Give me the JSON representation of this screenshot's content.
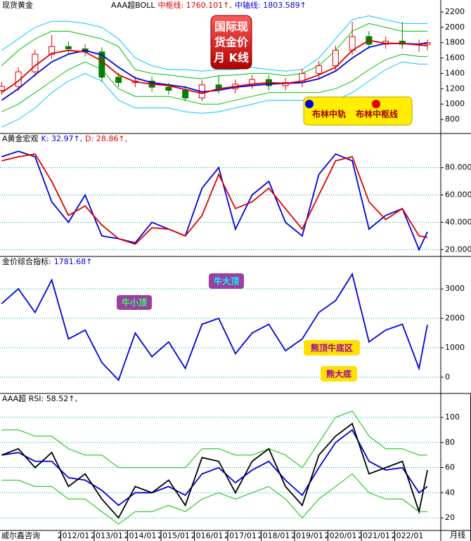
{
  "chart_data": [
    {
      "type": "candlestick",
      "name": "现货黄金",
      "header": [
        {
          "text": "AAA超BOLL",
          "color": "#000000"
        },
        {
          "text": "中枢线: 1760.101↑,",
          "color": "#e00000"
        },
        {
          "text": "中轴线: 1803.589↑",
          "color": "#0000dd"
        }
      ],
      "badge_lines": [
        "国际现",
        "货金价",
        "月  K线"
      ],
      "legend": "bottom-right",
      "xlim": [
        2009.8,
        2023
      ],
      "ylim": [
        617,
        2356
      ],
      "yticks": [
        800,
        1000,
        1200,
        1400,
        1600,
        1800,
        2000,
        2200
      ],
      "grid": false,
      "up_color": "#e00000",
      "down_color": "#008000",
      "x": [
        2009.85,
        2010.35,
        2010.85,
        2011.35,
        2011.85,
        2012.35,
        2012.85,
        2013.35,
        2013.85,
        2014.35,
        2014.85,
        2015.35,
        2015.85,
        2016.35,
        2016.85,
        2017.35,
        2017.85,
        2018.35,
        2018.85,
        2019.35,
        2019.85,
        2020.35,
        2020.85,
        2021.35,
        2021.85,
        2022.35,
        2022.6
      ],
      "open": [
        1180,
        1230,
        1420,
        1650,
        1750,
        1720,
        1680,
        1350,
        1280,
        1300,
        1220,
        1180,
        1080,
        1250,
        1200,
        1260,
        1320,
        1240,
        1280,
        1400,
        1500,
        1700,
        1880,
        1780,
        1820,
        1780,
        1780
      ],
      "close": [
        1230,
        1420,
        1650,
        1750,
        1720,
        1680,
        1350,
        1280,
        1300,
        1220,
        1180,
        1080,
        1250,
        1200,
        1260,
        1320,
        1240,
        1280,
        1400,
        1500,
        1700,
        1880,
        1780,
        1820,
        1780,
        1780,
        1800
      ],
      "high": [
        1290,
        1480,
        1710,
        1900,
        1820,
        1780,
        1740,
        1410,
        1360,
        1360,
        1280,
        1240,
        1310,
        1370,
        1320,
        1380,
        1380,
        1340,
        1460,
        1560,
        1760,
        2070,
        1950,
        1880,
        2070,
        1840,
        1840
      ],
      "low": [
        1120,
        1170,
        1360,
        1590,
        1660,
        1620,
        1290,
        1220,
        1220,
        1160,
        1120,
        1040,
        1040,
        1140,
        1140,
        1200,
        1180,
        1180,
        1220,
        1340,
        1440,
        1640,
        1720,
        1720,
        1720,
        1680,
        1700
      ],
      "series": [
        {
          "color": "#00c8ff",
          "values": [
            1700,
            1850,
            2000,
            2080,
            2080,
            2050,
            2000,
            1850,
            1600,
            1500,
            1450,
            1450,
            1430,
            1450,
            1450,
            1480,
            1450,
            1430,
            1450,
            1600,
            1850,
            2100,
            2150,
            2100,
            2050,
            2050,
            2050
          ]
        },
        {
          "color": "#00c8ff",
          "values": [
            700,
            800,
            950,
            1150,
            1300,
            1400,
            1300,
            1050,
            950,
            950,
            950,
            900,
            880,
            900,
            950,
            1000,
            1050,
            1050,
            1050,
            1000,
            1050,
            1150,
            1300,
            1450,
            1550,
            1520,
            1520
          ]
        },
        {
          "color": "#00c000",
          "values": [
            1500,
            1700,
            1850,
            1950,
            1950,
            1900,
            1850,
            1750,
            1450,
            1400,
            1380,
            1350,
            1330,
            1370,
            1380,
            1400,
            1400,
            1370,
            1400,
            1500,
            1700,
            1950,
            2050,
            2000,
            1950,
            1950,
            1950
          ]
        },
        {
          "color": "#00c000",
          "values": [
            900,
            1000,
            1150,
            1300,
            1450,
            1550,
            1450,
            1200,
            1100,
            1100,
            1100,
            1050,
            1000,
            1000,
            1050,
            1100,
            1150,
            1150,
            1150,
            1150,
            1200,
            1300,
            1450,
            1580,
            1650,
            1620,
            1620
          ]
        },
        {
          "name": "布林中轨",
          "color": "#0000dd",
          "values": [
            1050,
            1200,
            1380,
            1550,
            1650,
            1700,
            1640,
            1480,
            1340,
            1280,
            1250,
            1220,
            1160,
            1180,
            1220,
            1240,
            1260,
            1270,
            1280,
            1330,
            1430,
            1600,
            1740,
            1790,
            1790,
            1780,
            1800
          ]
        },
        {
          "name": "布林中枢线",
          "color": "#e00000",
          "values": [
            1150,
            1300,
            1500,
            1660,
            1700,
            1680,
            1560,
            1380,
            1290,
            1260,
            1240,
            1190,
            1140,
            1200,
            1230,
            1260,
            1280,
            1270,
            1300,
            1380,
            1480,
            1700,
            1830,
            1790,
            1790,
            1770,
            1760
          ]
        }
      ]
    },
    {
      "type": "line",
      "header": [
        {
          "text": "A黄金宏观",
          "color": "#000000"
        },
        {
          "text": "K: 32.97↑,",
          "color": "#0000dd"
        },
        {
          "text": "D: 28.86↑,",
          "color": "#e00000"
        }
      ],
      "xlim": [
        2009.8,
        2023
      ],
      "ylim": [
        15,
        105
      ],
      "yticks": [
        {
          "value": 20,
          "label": "20.0000"
        },
        {
          "value": 40,
          "label": "40.0000"
        },
        {
          "value": 60,
          "label": "60.0000"
        },
        {
          "value": 80,
          "label": "80.0000"
        }
      ],
      "grid": true,
      "x": [
        2009.85,
        2010.35,
        2010.85,
        2011.35,
        2011.85,
        2012.35,
        2012.85,
        2013.35,
        2013.85,
        2014.35,
        2014.85,
        2015.35,
        2015.85,
        2016.35,
        2016.85,
        2017.35,
        2017.85,
        2018.35,
        2018.85,
        2019.35,
        2019.85,
        2020.35,
        2020.85,
        2021.35,
        2021.85,
        2022.35,
        2022.6
      ],
      "series": [
        {
          "color": "#0000dd",
          "values": [
            88,
            92,
            88,
            55,
            40,
            60,
            30,
            28,
            25,
            40,
            35,
            30,
            65,
            80,
            35,
            60,
            70,
            40,
            30,
            75,
            90,
            85,
            35,
            45,
            50,
            20,
            33
          ]
        },
        {
          "color": "#e00000",
          "values": [
            85,
            88,
            90,
            70,
            45,
            52,
            38,
            28,
            24,
            36,
            35,
            30,
            45,
            75,
            50,
            55,
            65,
            50,
            35,
            60,
            85,
            88,
            55,
            42,
            50,
            30,
            29
          ]
        }
      ]
    },
    {
      "type": "line",
      "header": [
        {
          "text": "金价综合指标:",
          "color": "#000000"
        },
        {
          "text": "1781.68↑",
          "color": "#0000dd"
        }
      ],
      "annotations": [
        "牛大顶",
        "牛小顶",
        "熊顶牛底区",
        "熊大底"
      ],
      "xlim": [
        2009.8,
        2023
      ],
      "ylim": [
        -550,
        4100
      ],
      "yticks": [
        0,
        1000,
        2000,
        3000
      ],
      "grid": true,
      "x": [
        2009.85,
        2010.35,
        2010.85,
        2011.35,
        2011.85,
        2012.35,
        2012.85,
        2013.35,
        2013.85,
        2014.35,
        2014.85,
        2015.35,
        2015.85,
        2016.35,
        2016.85,
        2017.35,
        2017.85,
        2018.35,
        2018.85,
        2019.35,
        2019.85,
        2020.35,
        2020.85,
        2021.35,
        2021.85,
        2022.35,
        2022.6
      ],
      "series": [
        {
          "color": "#0000dd",
          "values": [
            2500,
            3000,
            2200,
            3300,
            1300,
            1600,
            500,
            -100,
            1500,
            700,
            1200,
            300,
            1800,
            2000,
            800,
            1500,
            1800,
            900,
            1300,
            2200,
            2600,
            3500,
            1200,
            1600,
            1800,
            300,
            1782
          ]
        }
      ]
    },
    {
      "type": "line",
      "header": [
        {
          "text": "AAA超 RSI: 58.52↑,",
          "color": "#000000"
        }
      ],
      "xlim": [
        2009.8,
        2023
      ],
      "ylim": [
        10,
        119
      ],
      "yticks": [
        20,
        40,
        60,
        80,
        100
      ],
      "xticks": [
        {
          "value": 2012,
          "label": "2012/01"
        },
        {
          "value": 2013,
          "label": "2013/01"
        },
        {
          "value": 2014,
          "label": "2014/01"
        },
        {
          "value": 2015,
          "label": "2015/01"
        },
        {
          "value": 2016,
          "label": "2016/01"
        },
        {
          "value": 2017,
          "label": "2017/01"
        },
        {
          "value": 2018,
          "label": "2018/01"
        },
        {
          "value": 2019,
          "label": "2019/01"
        },
        {
          "value": 2020,
          "label": "2020/01"
        },
        {
          "value": 2021,
          "label": "2021/01"
        },
        {
          "value": 2022,
          "label": "2022/01"
        }
      ],
      "grid": true,
      "x": [
        2009.85,
        2010.35,
        2010.85,
        2011.35,
        2011.85,
        2012.35,
        2012.85,
        2013.35,
        2013.85,
        2014.35,
        2014.85,
        2015.35,
        2015.85,
        2016.35,
        2016.85,
        2017.35,
        2017.85,
        2018.35,
        2018.85,
        2019.35,
        2019.85,
        2020.35,
        2020.85,
        2021.35,
        2021.85,
        2022.35,
        2022.6
      ],
      "series": [
        {
          "color": "#00c000",
          "values": [
            90,
            90,
            85,
            85,
            75,
            70,
            70,
            60,
            60,
            60,
            60,
            60,
            75,
            75,
            70,
            70,
            75,
            70,
            60,
            80,
            100,
            105,
            85,
            75,
            75,
            70,
            70
          ]
        },
        {
          "color": "#00c000",
          "values": [
            50,
            50,
            45,
            45,
            35,
            35,
            25,
            15,
            25,
            25,
            30,
            25,
            35,
            40,
            35,
            40,
            45,
            35,
            20,
            35,
            45,
            55,
            40,
            35,
            35,
            25,
            25
          ]
        },
        {
          "color": "#0000dd",
          "values": [
            70,
            72,
            65,
            65,
            52,
            50,
            42,
            30,
            40,
            40,
            45,
            38,
            55,
            60,
            48,
            58,
            65,
            50,
            38,
            60,
            80,
            90,
            65,
            58,
            60,
            40,
            45
          ]
        },
        {
          "color": "#000000",
          "values": [
            70,
            75,
            60,
            72,
            45,
            55,
            35,
            20,
            45,
            40,
            50,
            30,
            68,
            65,
            40,
            65,
            75,
            45,
            30,
            70,
            85,
            95,
            55,
            60,
            65,
            25,
            58
          ]
        }
      ]
    }
  ],
  "footer": {
    "source": "威尔鑫咨询",
    "period": "月线"
  }
}
